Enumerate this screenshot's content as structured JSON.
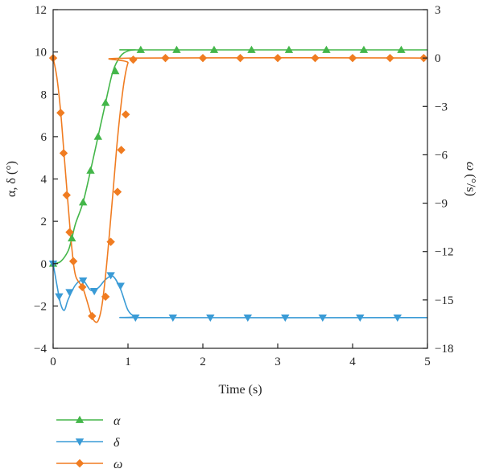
{
  "chart_data": {
    "type": "line",
    "title": "",
    "xlabel": "Time (s)",
    "ylabel_left": "α, δ (°)",
    "ylabel_right_symbol": "ω",
    "ylabel_right_unit": " (°/s)",
    "xlim": [
      0,
      5
    ],
    "ylim_left": [
      -4,
      12
    ],
    "ylim_right": [
      -18,
      3
    ],
    "x_ticks": [
      "0",
      "1",
      "2",
      "3",
      "4",
      "5"
    ],
    "y_left_ticks": [
      "−4",
      "−2",
      "0",
      "2",
      "4",
      "6",
      "8",
      "10",
      "12"
    ],
    "y_right_ticks": [
      "−18",
      "−15",
      "−12",
      "−9",
      "−6",
      "−3",
      "0",
      "3"
    ],
    "grid": false,
    "legend_position": "bottom-left",
    "series": [
      {
        "name": "α",
        "axis": "left",
        "color": "#43b649",
        "marker": "triangle-up",
        "curve": [
          [
            0,
            0
          ],
          [
            0.1,
            0.1
          ],
          [
            0.2,
            0.6
          ],
          [
            0.25,
            1.2
          ],
          [
            0.3,
            1.9
          ],
          [
            0.4,
            2.9
          ],
          [
            0.5,
            4.4
          ],
          [
            0.6,
            6.0
          ],
          [
            0.7,
            7.6
          ],
          [
            0.8,
            9.1
          ],
          [
            0.9,
            9.8
          ],
          [
            1.0,
            10.05
          ],
          [
            1.1,
            10.1
          ],
          [
            1.2,
            10.1
          ],
          [
            5,
            10.1
          ]
        ],
        "markers": [
          [
            0,
            0
          ],
          [
            0.25,
            1.2
          ],
          [
            0.4,
            2.9
          ],
          [
            0.5,
            4.4
          ],
          [
            0.6,
            6.0
          ],
          [
            0.7,
            7.6
          ],
          [
            0.83,
            9.1
          ],
          [
            1.17,
            10.1
          ],
          [
            1.65,
            10.1
          ],
          [
            2.15,
            10.1
          ],
          [
            2.65,
            10.1
          ],
          [
            3.15,
            10.1
          ],
          [
            3.65,
            10.1
          ],
          [
            4.15,
            10.1
          ],
          [
            4.65,
            10.1
          ]
        ]
      },
      {
        "name": "δ",
        "axis": "left",
        "color": "#3a9bd6",
        "marker": "triangle-down",
        "curve": [
          [
            0,
            0
          ],
          [
            0.05,
            -1.0
          ],
          [
            0.1,
            -1.9
          ],
          [
            0.15,
            -2.2
          ],
          [
            0.2,
            -1.7
          ],
          [
            0.3,
            -1.0
          ],
          [
            0.4,
            -0.8
          ],
          [
            0.5,
            -1.25
          ],
          [
            0.6,
            -1.15
          ],
          [
            0.7,
            -0.75
          ],
          [
            0.8,
            -0.6
          ],
          [
            0.9,
            -1.2
          ],
          [
            1.0,
            -2.2
          ],
          [
            1.1,
            -2.5
          ],
          [
            1.2,
            -2.55
          ],
          [
            5,
            -2.55
          ]
        ],
        "markers": [
          [
            0,
            0
          ],
          [
            0.08,
            -1.55
          ],
          [
            0.22,
            -1.35
          ],
          [
            0.4,
            -0.8
          ],
          [
            0.55,
            -1.3
          ],
          [
            0.77,
            -0.55
          ],
          [
            0.9,
            -1.05
          ],
          [
            1.1,
            -2.55
          ],
          [
            1.6,
            -2.55
          ],
          [
            2.1,
            -2.55
          ],
          [
            2.6,
            -2.55
          ],
          [
            3.1,
            -2.55
          ],
          [
            3.6,
            -2.55
          ],
          [
            4.1,
            -2.55
          ],
          [
            4.6,
            -2.55
          ]
        ]
      },
      {
        "name": "ω",
        "axis": "right",
        "color": "#f07c21",
        "marker": "diamond",
        "curve": [
          [
            0,
            0
          ],
          [
            0.05,
            -1.2
          ],
          [
            0.1,
            -3.3
          ],
          [
            0.15,
            -6.2
          ],
          [
            0.2,
            -9.1
          ],
          [
            0.25,
            -11.8
          ],
          [
            0.3,
            -13.5
          ],
          [
            0.4,
            -14.3
          ],
          [
            0.5,
            -15.8
          ],
          [
            0.55,
            -16.3
          ],
          [
            0.6,
            -16.3
          ],
          [
            0.65,
            -15.4
          ],
          [
            0.7,
            -13.5
          ],
          [
            0.75,
            -11.0
          ],
          [
            0.8,
            -8.3
          ],
          [
            0.85,
            -5.5
          ],
          [
            0.9,
            -3.2
          ],
          [
            0.95,
            -1.4
          ],
          [
            1.0,
            -0.3
          ],
          [
            1.05,
            0
          ],
          [
            5,
            0
          ]
        ],
        "markers": [
          [
            0,
            0
          ],
          [
            0.1,
            -3.4
          ],
          [
            0.14,
            -5.9
          ],
          [
            0.18,
            -8.5
          ],
          [
            0.22,
            -10.8
          ],
          [
            0.27,
            -12.6
          ],
          [
            0.39,
            -14.2
          ],
          [
            0.52,
            -16.0
          ],
          [
            0.7,
            -14.8
          ],
          [
            0.77,
            -11.4
          ],
          [
            0.86,
            -8.3
          ],
          [
            0.91,
            -5.7
          ],
          [
            0.97,
            -3.5
          ],
          [
            1.07,
            -0.1
          ],
          [
            1.5,
            0
          ],
          [
            2.0,
            0
          ],
          [
            2.5,
            0
          ],
          [
            3.0,
            0
          ],
          [
            3.5,
            0
          ],
          [
            4.0,
            0
          ],
          [
            4.5,
            0
          ],
          [
            4.95,
            0
          ]
        ]
      }
    ]
  }
}
